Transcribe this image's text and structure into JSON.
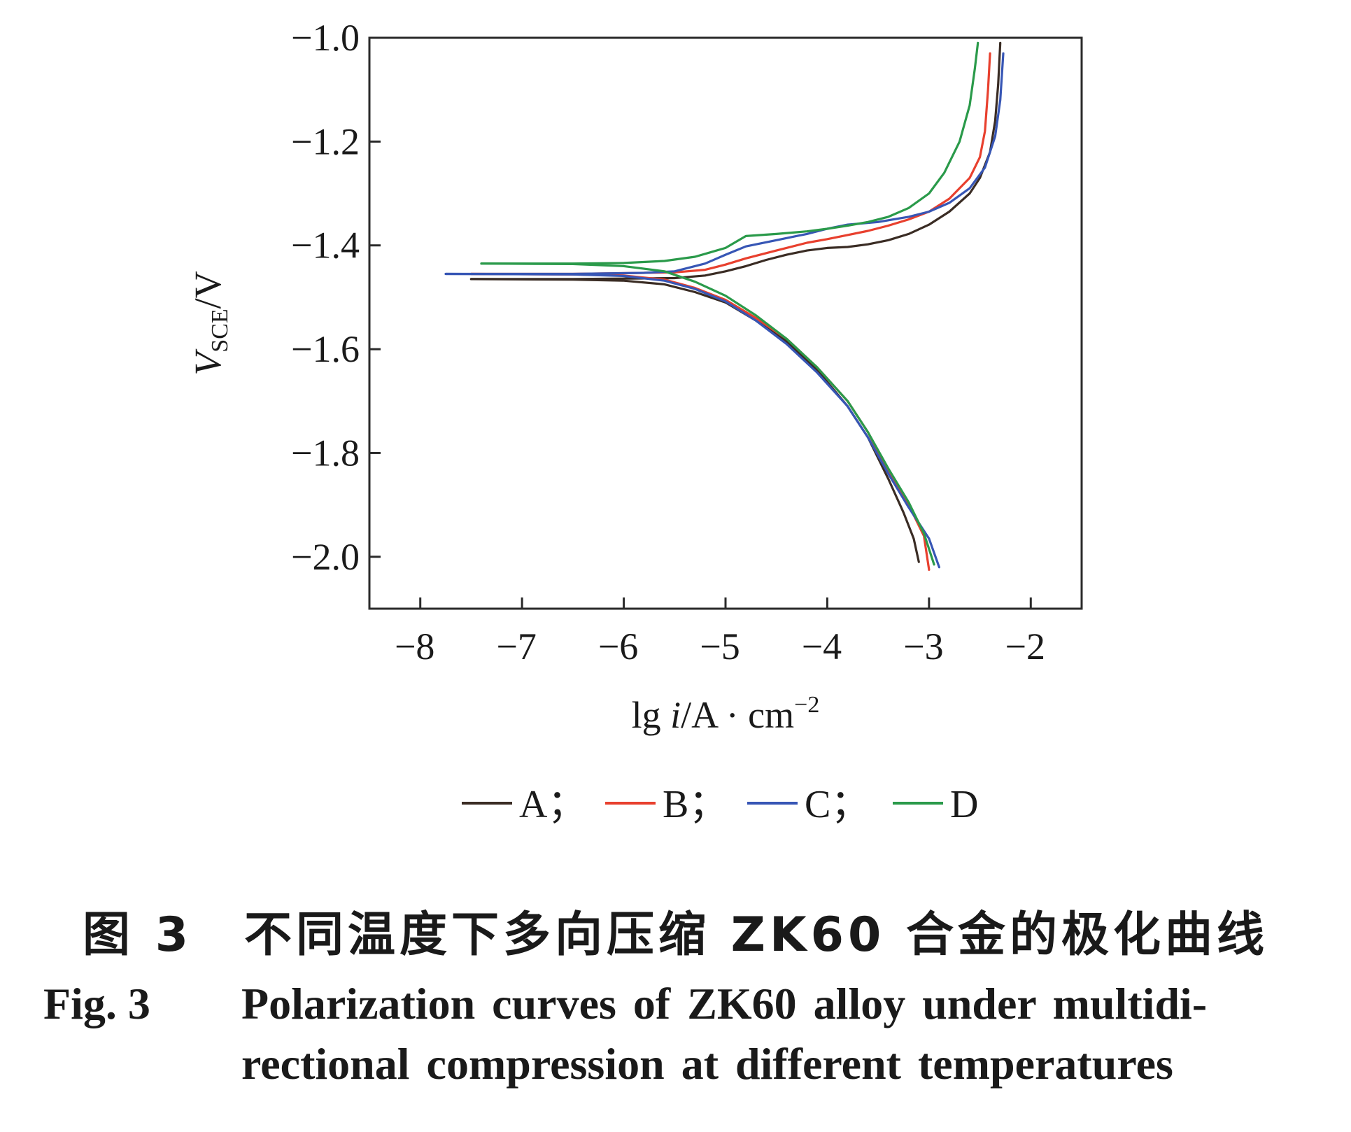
{
  "chart_data": {
    "type": "line",
    "xlabel": "lg i/A · cm⁻²",
    "ylabel": "V_SCE/V",
    "xlim": [
      -8.5,
      -1.5
    ],
    "ylim": [
      -2.1,
      -1.0
    ],
    "xticks": [
      -8,
      -7,
      -6,
      -5,
      -4,
      -3,
      -2
    ],
    "yticks": [
      -1.0,
      -1.2,
      -1.4,
      -1.6,
      -1.8,
      -2.0
    ],
    "xtick_labels": [
      "−8",
      "−7",
      "−6",
      "−5",
      "−4",
      "−3",
      "−2"
    ],
    "ytick_labels": [
      "−1.0",
      "−1.2",
      "−1.4",
      "−1.6",
      "−1.8",
      "−2.0"
    ],
    "grid": false,
    "legend_position": "bottom",
    "series": [
      {
        "name": "A",
        "color": "#3a2c24",
        "anodic": [
          [
            -7.5,
            -1.465
          ],
          [
            -6.5,
            -1.465
          ],
          [
            -5.5,
            -1.463
          ],
          [
            -5.2,
            -1.458
          ],
          [
            -5.0,
            -1.45
          ],
          [
            -4.8,
            -1.44
          ],
          [
            -4.6,
            -1.428
          ],
          [
            -4.4,
            -1.418
          ],
          [
            -4.2,
            -1.41
          ],
          [
            -4.0,
            -1.405
          ],
          [
            -3.8,
            -1.403
          ],
          [
            -3.6,
            -1.398
          ],
          [
            -3.4,
            -1.39
          ],
          [
            -3.2,
            -1.378
          ],
          [
            -3.0,
            -1.36
          ],
          [
            -2.8,
            -1.335
          ],
          [
            -2.6,
            -1.3
          ],
          [
            -2.5,
            -1.27
          ],
          [
            -2.4,
            -1.22
          ],
          [
            -2.35,
            -1.16
          ],
          [
            -2.32,
            -1.09
          ],
          [
            -2.3,
            -1.01
          ]
        ],
        "cathodic": [
          [
            -7.5,
            -1.465
          ],
          [
            -6.5,
            -1.466
          ],
          [
            -6.0,
            -1.468
          ],
          [
            -5.6,
            -1.475
          ],
          [
            -5.3,
            -1.49
          ],
          [
            -5.0,
            -1.51
          ],
          [
            -4.7,
            -1.545
          ],
          [
            -4.4,
            -1.585
          ],
          [
            -4.1,
            -1.64
          ],
          [
            -3.8,
            -1.71
          ],
          [
            -3.6,
            -1.77
          ],
          [
            -3.4,
            -1.85
          ],
          [
            -3.25,
            -1.915
          ],
          [
            -3.15,
            -1.965
          ],
          [
            -3.1,
            -2.01
          ]
        ]
      },
      {
        "name": "B",
        "color": "#e8402e",
        "anodic": [
          [
            -7.5,
            -1.455
          ],
          [
            -6.5,
            -1.455
          ],
          [
            -5.5,
            -1.452
          ],
          [
            -5.2,
            -1.447
          ],
          [
            -5.0,
            -1.437
          ],
          [
            -4.8,
            -1.425
          ],
          [
            -4.5,
            -1.41
          ],
          [
            -4.2,
            -1.395
          ],
          [
            -4.0,
            -1.388
          ],
          [
            -3.8,
            -1.38
          ],
          [
            -3.6,
            -1.372
          ],
          [
            -3.4,
            -1.362
          ],
          [
            -3.2,
            -1.35
          ],
          [
            -3.0,
            -1.335
          ],
          [
            -2.8,
            -1.31
          ],
          [
            -2.6,
            -1.27
          ],
          [
            -2.5,
            -1.23
          ],
          [
            -2.45,
            -1.18
          ],
          [
            -2.42,
            -1.1
          ],
          [
            -2.4,
            -1.03
          ]
        ],
        "cathodic": [
          [
            -7.5,
            -1.455
          ],
          [
            -6.5,
            -1.456
          ],
          [
            -6.0,
            -1.458
          ],
          [
            -5.6,
            -1.466
          ],
          [
            -5.3,
            -1.482
          ],
          [
            -5.0,
            -1.505
          ],
          [
            -4.7,
            -1.54
          ],
          [
            -4.4,
            -1.58
          ],
          [
            -4.1,
            -1.635
          ],
          [
            -3.8,
            -1.7
          ],
          [
            -3.6,
            -1.76
          ],
          [
            -3.4,
            -1.835
          ],
          [
            -3.2,
            -1.9
          ],
          [
            -3.05,
            -1.96
          ],
          [
            -3.0,
            -2.025
          ]
        ]
      },
      {
        "name": "C",
        "color": "#3756b5",
        "anodic": [
          [
            -7.75,
            -1.455
          ],
          [
            -6.5,
            -1.455
          ],
          [
            -5.8,
            -1.453
          ],
          [
            -5.5,
            -1.45
          ],
          [
            -5.2,
            -1.435
          ],
          [
            -5.0,
            -1.418
          ],
          [
            -4.8,
            -1.402
          ],
          [
            -4.5,
            -1.39
          ],
          [
            -4.2,
            -1.378
          ],
          [
            -4.0,
            -1.368
          ],
          [
            -3.8,
            -1.36
          ],
          [
            -3.5,
            -1.355
          ],
          [
            -3.2,
            -1.345
          ],
          [
            -3.0,
            -1.335
          ],
          [
            -2.8,
            -1.318
          ],
          [
            -2.6,
            -1.29
          ],
          [
            -2.45,
            -1.25
          ],
          [
            -2.35,
            -1.19
          ],
          [
            -2.3,
            -1.12
          ],
          [
            -2.27,
            -1.03
          ]
        ],
        "cathodic": [
          [
            -7.75,
            -1.455
          ],
          [
            -6.5,
            -1.456
          ],
          [
            -6.0,
            -1.459
          ],
          [
            -5.6,
            -1.468
          ],
          [
            -5.3,
            -1.484
          ],
          [
            -5.0,
            -1.508
          ],
          [
            -4.7,
            -1.545
          ],
          [
            -4.4,
            -1.59
          ],
          [
            -4.1,
            -1.645
          ],
          [
            -3.8,
            -1.71
          ],
          [
            -3.6,
            -1.77
          ],
          [
            -3.4,
            -1.84
          ],
          [
            -3.2,
            -1.905
          ],
          [
            -3.0,
            -1.965
          ],
          [
            -2.9,
            -2.02
          ]
        ]
      },
      {
        "name": "D",
        "color": "#2a9a4a",
        "anodic": [
          [
            -7.4,
            -1.435
          ],
          [
            -6.5,
            -1.435
          ],
          [
            -6.0,
            -1.434
          ],
          [
            -5.6,
            -1.43
          ],
          [
            -5.3,
            -1.422
          ],
          [
            -5.0,
            -1.405
          ],
          [
            -4.8,
            -1.382
          ],
          [
            -4.5,
            -1.378
          ],
          [
            -4.2,
            -1.373
          ],
          [
            -4.0,
            -1.368
          ],
          [
            -3.8,
            -1.362
          ],
          [
            -3.6,
            -1.355
          ],
          [
            -3.4,
            -1.345
          ],
          [
            -3.2,
            -1.328
          ],
          [
            -3.0,
            -1.3
          ],
          [
            -2.85,
            -1.26
          ],
          [
            -2.7,
            -1.2
          ],
          [
            -2.6,
            -1.13
          ],
          [
            -2.55,
            -1.06
          ],
          [
            -2.52,
            -1.01
          ]
        ],
        "cathodic": [
          [
            -7.4,
            -1.435
          ],
          [
            -6.5,
            -1.436
          ],
          [
            -6.0,
            -1.44
          ],
          [
            -5.6,
            -1.45
          ],
          [
            -5.3,
            -1.47
          ],
          [
            -5.0,
            -1.497
          ],
          [
            -4.7,
            -1.535
          ],
          [
            -4.4,
            -1.58
          ],
          [
            -4.1,
            -1.635
          ],
          [
            -3.8,
            -1.7
          ],
          [
            -3.6,
            -1.76
          ],
          [
            -3.4,
            -1.83
          ],
          [
            -3.2,
            -1.895
          ],
          [
            -3.05,
            -1.955
          ],
          [
            -2.95,
            -2.015
          ]
        ]
      }
    ]
  },
  "legend": {
    "items": [
      {
        "label": "A；",
        "color": "#3a2c24"
      },
      {
        "label": "B；",
        "color": "#e8402e"
      },
      {
        "label": "C；",
        "color": "#3756b5"
      },
      {
        "label": "D",
        "color": "#2a9a4a"
      }
    ]
  },
  "caption": {
    "cn": "图 3　不同温度下多向压缩 ZK60 合金的极化曲线",
    "en_fig": "Fig. 3",
    "en_line1": "Polarization curves of ZK60 alloy under multidi-",
    "en_line2": "rectional compression at different temperatures"
  }
}
